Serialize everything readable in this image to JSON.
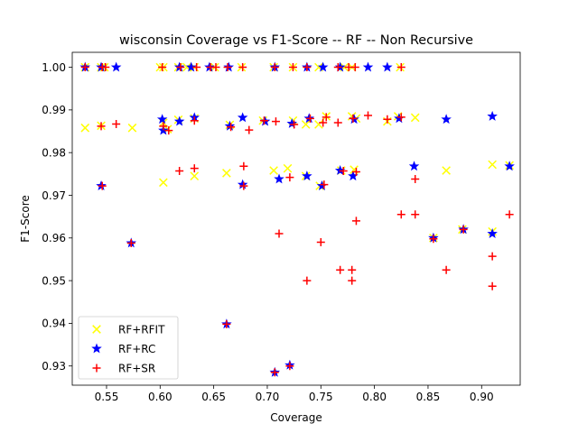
{
  "chart_data": {
    "type": "scatter",
    "title": "wisconsin Coverage vs F1-Score -- RF -- Non Recursive",
    "xlabel": "Coverage",
    "ylabel": "F1-Score",
    "xlim": [
      0.518,
      0.936
    ],
    "ylim": [
      0.9255,
      1.0035
    ],
    "xticks": [
      0.55,
      0.6,
      0.65,
      0.7,
      0.75,
      0.8,
      0.85,
      0.9
    ],
    "xtick_labels": [
      "0.55",
      "0.60",
      "0.65",
      "0.70",
      "0.75",
      "0.80",
      "0.85",
      "0.90"
    ],
    "yticks": [
      0.93,
      0.94,
      0.95,
      0.96,
      0.97,
      0.98,
      0.99,
      1.0
    ],
    "ytick_labels": [
      "0.93",
      "0.94",
      "0.95",
      "0.96",
      "0.97",
      "0.98",
      "0.99",
      "1.00"
    ],
    "grid": false,
    "legend_position": "lower-left",
    "series": [
      {
        "name": "RF+RFIT",
        "marker": "x",
        "color": "#ffff00",
        "points": [
          [
            0.53,
            1.0
          ],
          [
            0.545,
            1.0
          ],
          [
            0.548,
            1.0
          ],
          [
            0.6,
            1.0
          ],
          [
            0.603,
            1.0
          ],
          [
            0.617,
            1.0
          ],
          [
            0.625,
            1.0
          ],
          [
            0.632,
            1.0
          ],
          [
            0.651,
            1.0
          ],
          [
            0.676,
            1.0
          ],
          [
            0.706,
            1.0
          ],
          [
            0.724,
            1.0
          ],
          [
            0.748,
            1.0
          ],
          [
            0.772,
            1.0
          ],
          [
            0.779,
            1.0
          ],
          [
            0.824,
            1.0
          ],
          [
            0.53,
            0.9858
          ],
          [
            0.545,
            0.9863
          ],
          [
            0.574,
            0.9858
          ],
          [
            0.603,
            0.987
          ],
          [
            0.607,
            0.9855
          ],
          [
            0.617,
            0.9877
          ],
          [
            0.632,
            0.988
          ],
          [
            0.665,
            0.9865
          ],
          [
            0.696,
            0.9875
          ],
          [
            0.724,
            0.9875
          ],
          [
            0.736,
            0.9866
          ],
          [
            0.748,
            0.9866
          ],
          [
            0.755,
            0.9885
          ],
          [
            0.779,
            0.9885
          ],
          [
            0.783,
            0.988
          ],
          [
            0.812,
            0.9873
          ],
          [
            0.822,
            0.9885
          ],
          [
            0.838,
            0.9882
          ],
          [
            0.603,
            0.973
          ],
          [
            0.632,
            0.9745
          ],
          [
            0.662,
            0.9752
          ],
          [
            0.706,
            0.9758
          ],
          [
            0.719,
            0.9763
          ],
          [
            0.736,
            0.9745
          ],
          [
            0.749,
            0.9722
          ],
          [
            0.769,
            0.9758
          ],
          [
            0.781,
            0.976
          ],
          [
            0.867,
            0.9758
          ],
          [
            0.91,
            0.9772
          ],
          [
            0.926,
            0.977
          ],
          [
            0.855,
            0.96
          ],
          [
            0.882,
            0.962
          ],
          [
            0.91,
            0.9615
          ]
        ]
      },
      {
        "name": "RF+RC",
        "marker": "*",
        "color": "#0000ff",
        "points": [
          [
            0.53,
            1.0
          ],
          [
            0.545,
            1.0
          ],
          [
            0.559,
            1.0
          ],
          [
            0.618,
            1.0
          ],
          [
            0.629,
            1.0
          ],
          [
            0.646,
            1.0
          ],
          [
            0.664,
            1.0
          ],
          [
            0.707,
            1.0
          ],
          [
            0.737,
            1.0
          ],
          [
            0.752,
            1.0
          ],
          [
            0.768,
            1.0
          ],
          [
            0.794,
            1.0
          ],
          [
            0.812,
            1.0
          ],
          [
            0.602,
            0.9878
          ],
          [
            0.603,
            0.9852
          ],
          [
            0.618,
            0.9873
          ],
          [
            0.632,
            0.9882
          ],
          [
            0.665,
            0.9862
          ],
          [
            0.677,
            0.9882
          ],
          [
            0.698,
            0.9873
          ],
          [
            0.723,
            0.9868
          ],
          [
            0.739,
            0.988
          ],
          [
            0.781,
            0.9878
          ],
          [
            0.823,
            0.988
          ],
          [
            0.867,
            0.9878
          ],
          [
            0.91,
            0.9885
          ],
          [
            0.545,
            0.9722
          ],
          [
            0.677,
            0.9725
          ],
          [
            0.711,
            0.9738
          ],
          [
            0.737,
            0.9745
          ],
          [
            0.751,
            0.9722
          ],
          [
            0.768,
            0.9758
          ],
          [
            0.78,
            0.9745
          ],
          [
            0.837,
            0.9768
          ],
          [
            0.926,
            0.9768
          ],
          [
            0.573,
            0.9588
          ],
          [
            0.855,
            0.96
          ],
          [
            0.883,
            0.962
          ],
          [
            0.91,
            0.961
          ],
          [
            0.662,
            0.9398
          ],
          [
            0.707,
            0.9285
          ],
          [
            0.721,
            0.9302
          ]
        ]
      },
      {
        "name": "RF+SR",
        "marker": "+",
        "color": "#ff0000",
        "points": [
          [
            0.53,
            1.0
          ],
          [
            0.546,
            1.0
          ],
          [
            0.549,
            1.0
          ],
          [
            0.602,
            1.0
          ],
          [
            0.619,
            1.0
          ],
          [
            0.634,
            1.0
          ],
          [
            0.647,
            1.0
          ],
          [
            0.652,
            1.0
          ],
          [
            0.663,
            1.0
          ],
          [
            0.677,
            1.0
          ],
          [
            0.707,
            1.0
          ],
          [
            0.724,
            1.0
          ],
          [
            0.737,
            1.0
          ],
          [
            0.766,
            1.0
          ],
          [
            0.776,
            1.0
          ],
          [
            0.782,
            1.0
          ],
          [
            0.825,
            1.0
          ],
          [
            0.545,
            0.9862
          ],
          [
            0.559,
            0.9867
          ],
          [
            0.603,
            0.9862
          ],
          [
            0.608,
            0.9852
          ],
          [
            0.632,
            0.9875
          ],
          [
            0.666,
            0.986
          ],
          [
            0.683,
            0.9853
          ],
          [
            0.697,
            0.9875
          ],
          [
            0.708,
            0.9873
          ],
          [
            0.725,
            0.9866
          ],
          [
            0.74,
            0.988
          ],
          [
            0.752,
            0.987
          ],
          [
            0.755,
            0.9883
          ],
          [
            0.766,
            0.987
          ],
          [
            0.78,
            0.988
          ],
          [
            0.794,
            0.9887
          ],
          [
            0.812,
            0.9878
          ],
          [
            0.825,
            0.9883
          ],
          [
            0.546,
            0.9722
          ],
          [
            0.618,
            0.9757
          ],
          [
            0.632,
            0.9763
          ],
          [
            0.678,
            0.9768
          ],
          [
            0.678,
            0.9722
          ],
          [
            0.721,
            0.9742
          ],
          [
            0.753,
            0.9725
          ],
          [
            0.771,
            0.9757
          ],
          [
            0.783,
            0.9755
          ],
          [
            0.838,
            0.9738
          ],
          [
            0.573,
            0.9588
          ],
          [
            0.711,
            0.961
          ],
          [
            0.75,
            0.959
          ],
          [
            0.783,
            0.964
          ],
          [
            0.825,
            0.9655
          ],
          [
            0.838,
            0.9655
          ],
          [
            0.855,
            0.9598
          ],
          [
            0.883,
            0.962
          ],
          [
            0.926,
            0.9655
          ],
          [
            0.737,
            0.95
          ],
          [
            0.768,
            0.9525
          ],
          [
            0.779,
            0.9525
          ],
          [
            0.779,
            0.95
          ],
          [
            0.867,
            0.9525
          ],
          [
            0.91,
            0.9557
          ],
          [
            0.91,
            0.9487
          ],
          [
            0.662,
            0.9398
          ],
          [
            0.707,
            0.9285
          ],
          [
            0.721,
            0.93
          ]
        ]
      }
    ]
  }
}
